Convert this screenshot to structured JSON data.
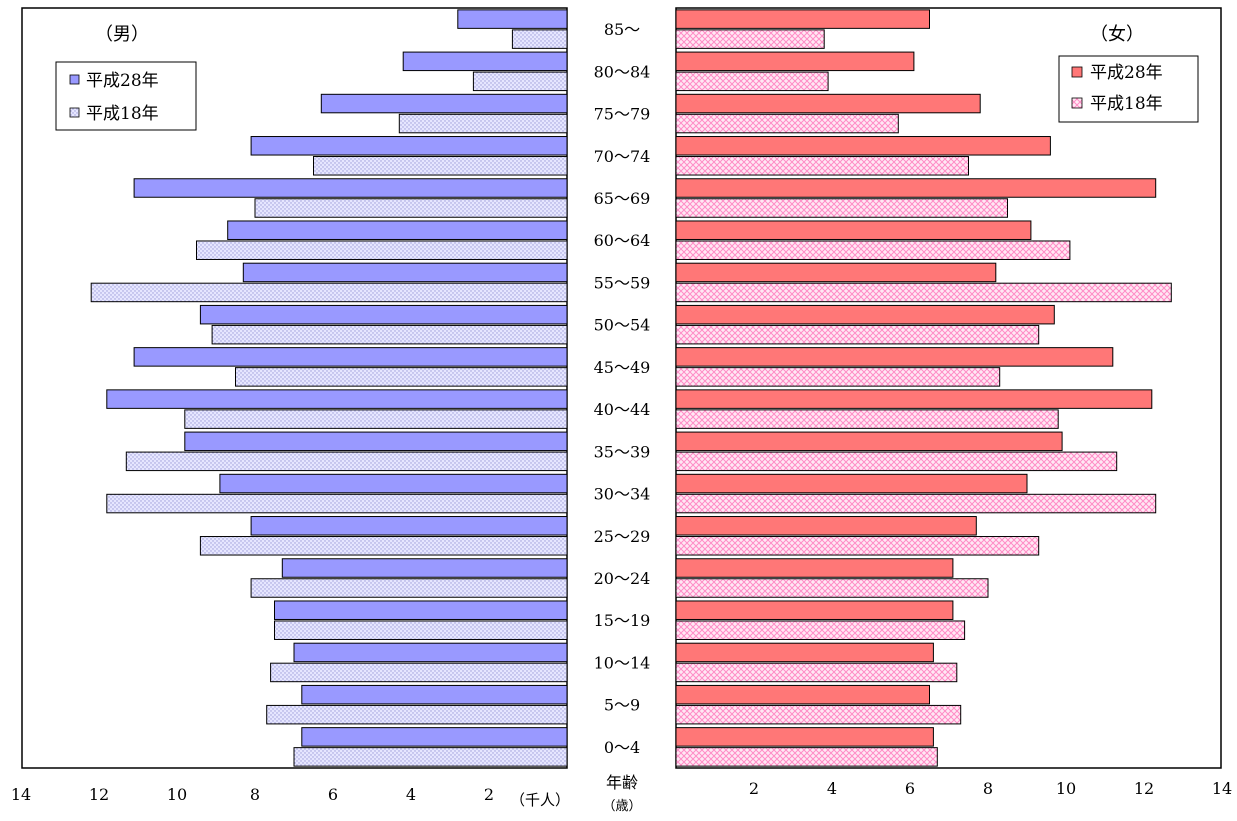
{
  "chart_data": {
    "type": "bar",
    "orientation": "horizontal-population-pyramid",
    "categories": [
      "0～4",
      "5～9",
      "10～14",
      "15～19",
      "20～24",
      "25～29",
      "30～34",
      "35～39",
      "40～44",
      "45～49",
      "50～54",
      "55～59",
      "60～64",
      "65～69",
      "70～74",
      "75～79",
      "80～84",
      "85～"
    ],
    "age_axis_label": "年齢",
    "age_axis_unit": "（歳）",
    "panels": [
      {
        "title": "（男）",
        "side": "left",
        "xlim": [
          0,
          14
        ],
        "ticks": [
          2,
          4,
          6,
          8,
          10,
          12,
          14
        ],
        "unit_label": "（千人）",
        "legend": [
          "平成28年",
          "平成18年"
        ],
        "series": [
          {
            "name": "平成28年",
            "color": "#9999ff",
            "pattern": "solid",
            "values": [
              6.8,
              6.8,
              7.0,
              7.5,
              7.3,
              8.1,
              8.9,
              9.8,
              11.8,
              11.1,
              9.4,
              8.3,
              8.7,
              11.1,
              8.1,
              6.3,
              4.2,
              2.8
            ]
          },
          {
            "name": "平成18年",
            "color": "#ccccff",
            "pattern": "dotted",
            "values": [
              7.0,
              7.7,
              7.6,
              7.5,
              8.1,
              9.4,
              11.8,
              11.3,
              9.8,
              8.5,
              9.1,
              12.2,
              9.5,
              8.0,
              6.5,
              4.3,
              2.4,
              1.4
            ]
          }
        ]
      },
      {
        "title": "（女）",
        "side": "right",
        "xlim": [
          0,
          14
        ],
        "ticks": [
          2,
          4,
          6,
          8,
          10,
          12,
          14
        ],
        "legend": [
          "平成28年",
          "平成18年"
        ],
        "series": [
          {
            "name": "平成28年",
            "color": "#ff7777",
            "pattern": "solid",
            "values": [
              6.6,
              6.5,
              6.6,
              7.1,
              7.1,
              7.7,
              9.0,
              9.9,
              12.2,
              11.2,
              9.7,
              8.2,
              9.1,
              12.3,
              9.6,
              7.8,
              6.1,
              6.5
            ]
          },
          {
            "name": "平成18年",
            "color": "#ffccee",
            "pattern": "crosshatch",
            "values": [
              6.7,
              7.3,
              7.2,
              7.4,
              8.0,
              9.3,
              12.3,
              11.3,
              9.8,
              8.3,
              9.3,
              12.7,
              10.1,
              8.5,
              7.5,
              5.7,
              3.9,
              3.8
            ]
          }
        ]
      }
    ]
  }
}
